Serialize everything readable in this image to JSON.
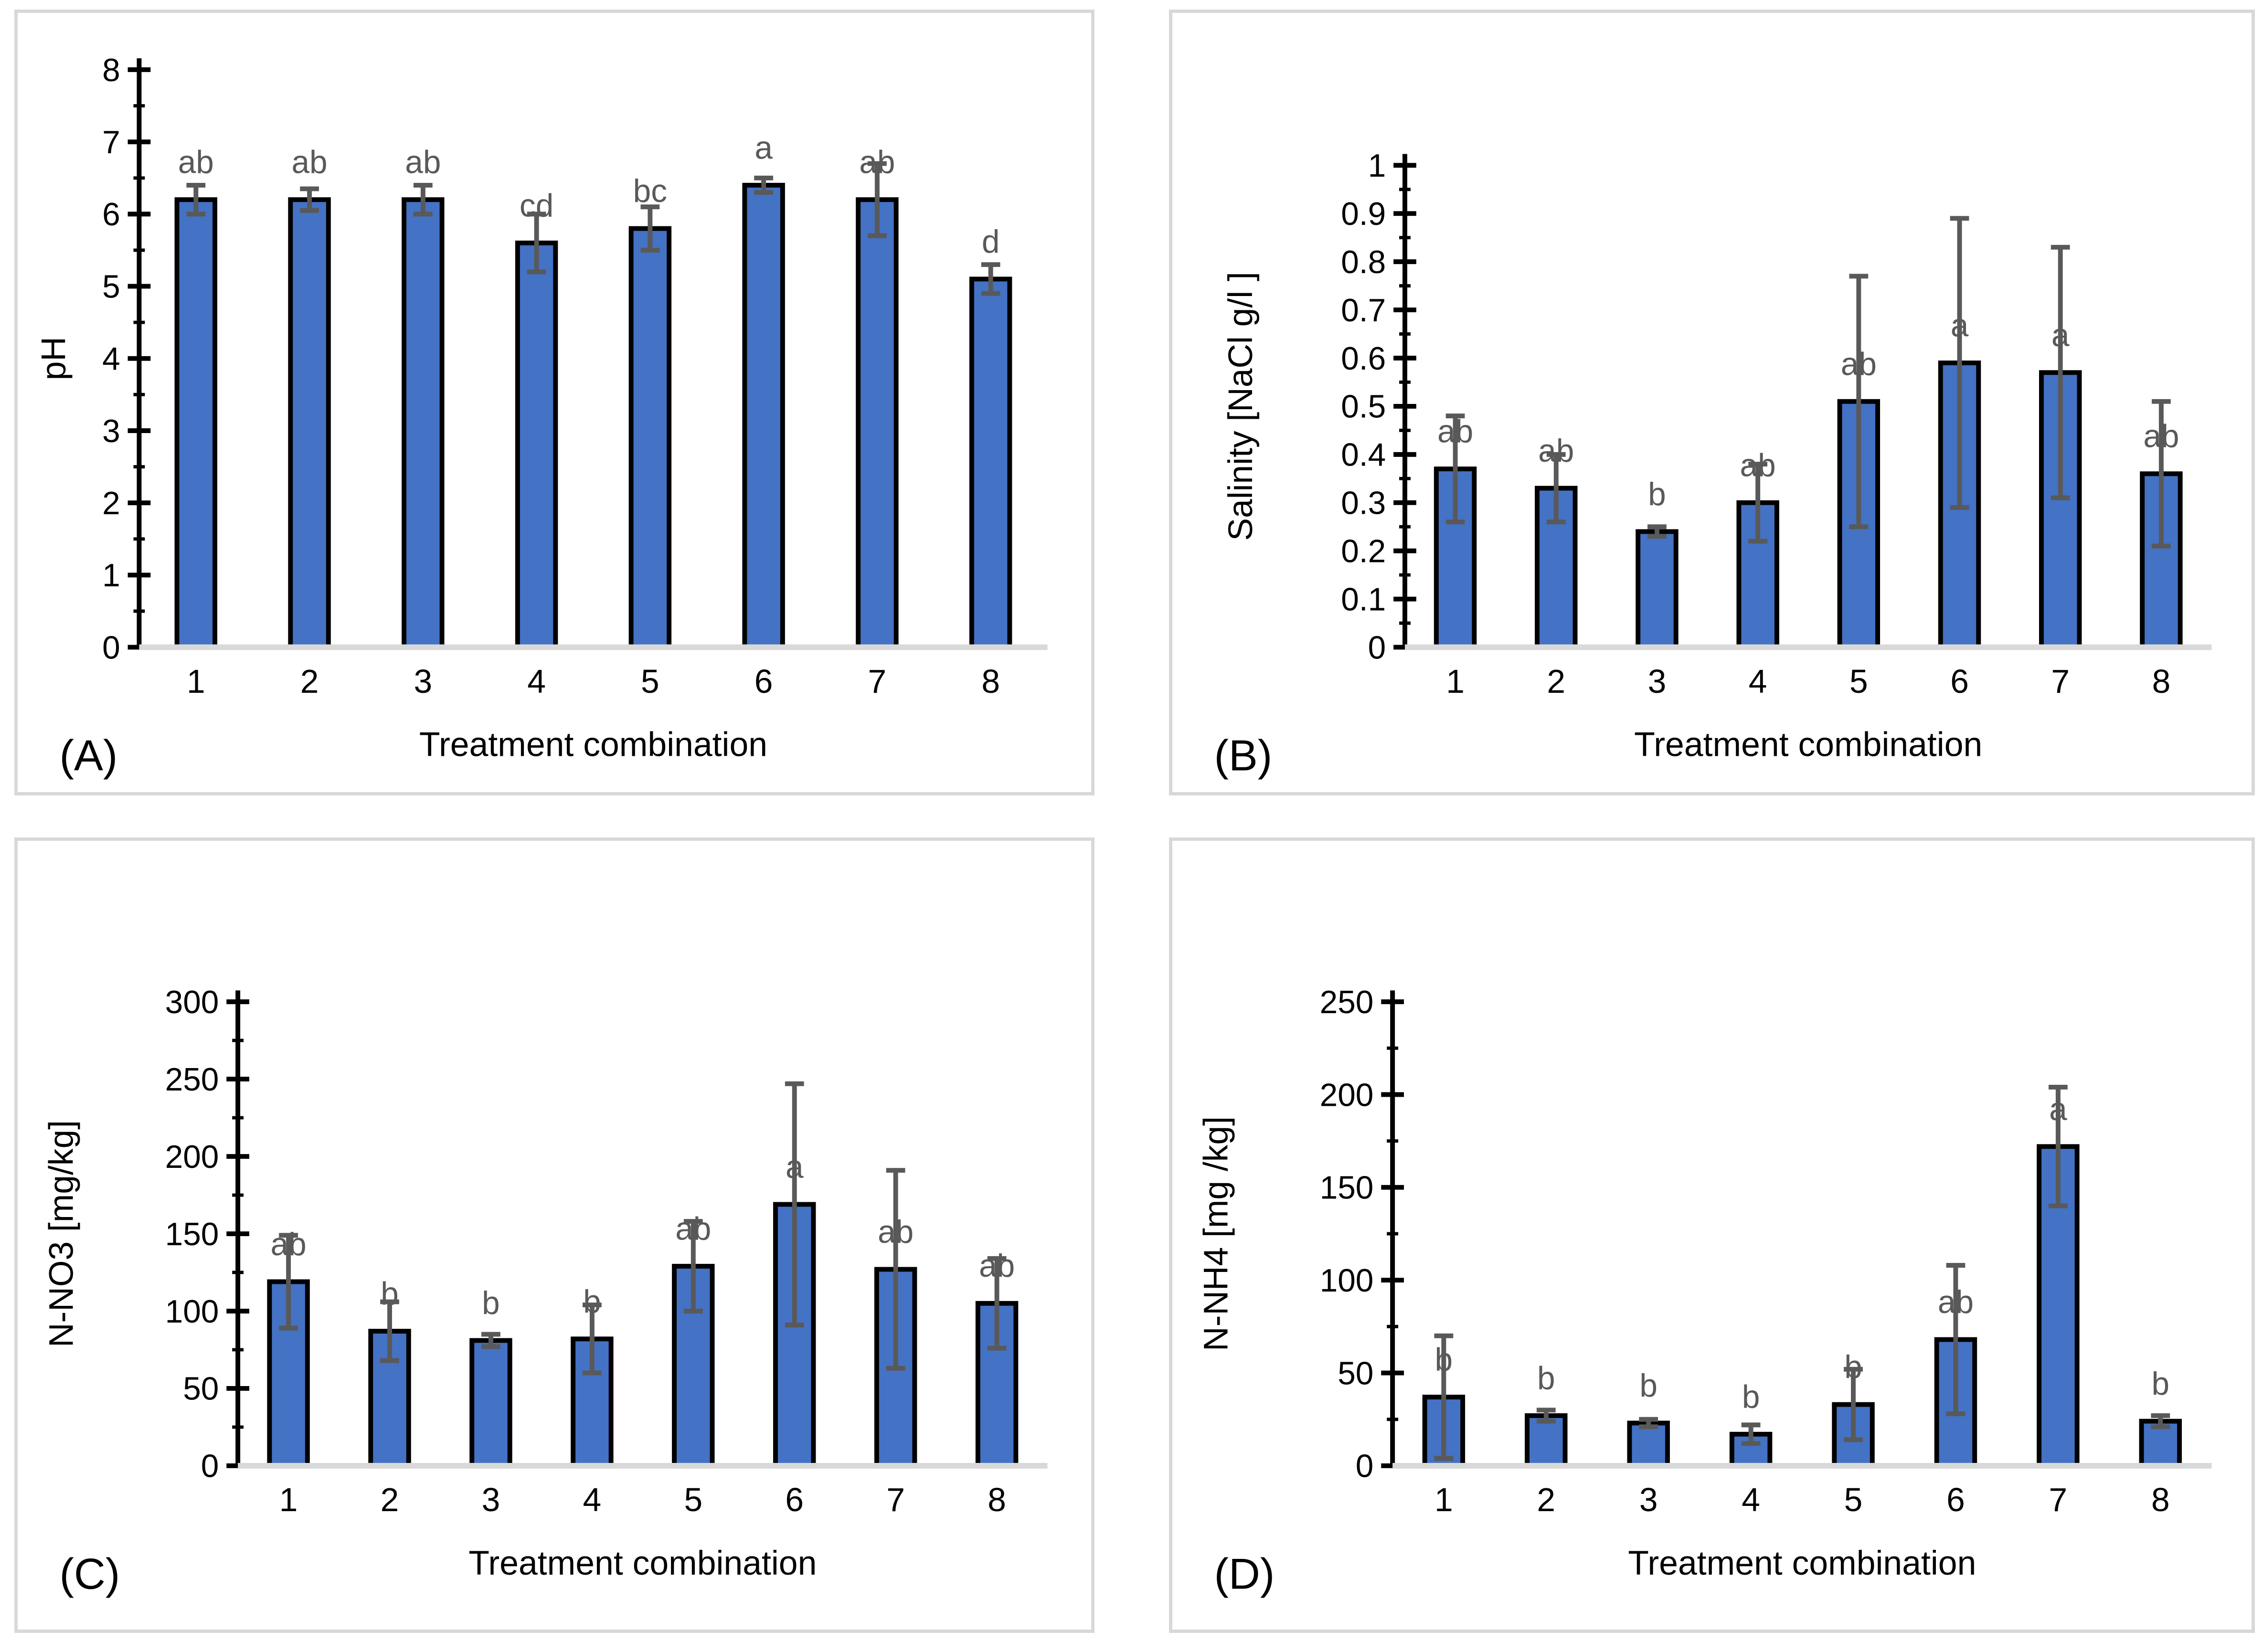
{
  "figure": {
    "description": "Four-panel bar chart figure with significance letters and error bars",
    "x_axis_title": "Treatment combination",
    "colors": {
      "bar_fill": "#4472C4",
      "bar_stroke": "#000000",
      "error_bar": "#595959",
      "sig_letter": "#595959",
      "axis": "#000000",
      "baseline": "#D9D9D9",
      "panel_border": "#D8D8D8",
      "background": "#FFFFFF"
    }
  },
  "chart_data": [
    {
      "type": "bar",
      "panel_label": "(A)",
      "title": "",
      "xlabel": "Treatment combination",
      "ylabel": "pH",
      "categories": [
        "1",
        "2",
        "3",
        "4",
        "5",
        "6",
        "7",
        "8"
      ],
      "values": [
        6.2,
        6.2,
        6.2,
        5.6,
        5.8,
        6.4,
        6.2,
        5.1
      ],
      "errors": [
        0.2,
        0.15,
        0.2,
        0.4,
        0.3,
        0.1,
        0.5,
        0.2
      ],
      "sig_letters": [
        "ab",
        "ab",
        "ab",
        "cd",
        "bc",
        "a",
        "ab",
        "d"
      ],
      "ylim": [
        0,
        8
      ],
      "ytick_label_step": 1,
      "ytick_minor_step": 0.5,
      "grid": false,
      "legend": false
    },
    {
      "type": "bar",
      "panel_label": "(B)",
      "title": "",
      "xlabel": "Treatment combination",
      "ylabel": "Salinity [NaCl g/l ]",
      "categories": [
        "1",
        "2",
        "3",
        "4",
        "5",
        "6",
        "7",
        "8"
      ],
      "values": [
        0.37,
        0.33,
        0.24,
        0.3,
        0.51,
        0.59,
        0.57,
        0.36
      ],
      "errors": [
        0.11,
        0.07,
        0.01,
        0.08,
        0.26,
        0.3,
        0.26,
        0.15
      ],
      "sig_letters": [
        "ab",
        "ab",
        "b",
        "ab",
        "ab",
        "a",
        "a",
        "ab"
      ],
      "ylim": [
        0,
        1
      ],
      "ytick_label_step": 0.1,
      "ytick_minor_step": 0.05,
      "grid": false,
      "legend": false
    },
    {
      "type": "bar",
      "panel_label": "(C)",
      "title": "",
      "xlabel": "Treatment combination",
      "ylabel": "N-NO3 [mg/kg]",
      "categories": [
        "1",
        "2",
        "3",
        "4",
        "5",
        "6",
        "7",
        "8"
      ],
      "values": [
        119,
        87,
        81,
        82,
        129,
        169,
        127,
        105
      ],
      "errors": [
        30,
        19,
        4,
        22,
        29,
        78,
        64,
        29
      ],
      "sig_letters": [
        "ab",
        "b",
        "b",
        "b",
        "ab",
        "a",
        "ab",
        "ab"
      ],
      "ylim": [
        0,
        300
      ],
      "ytick_label_step": 50,
      "ytick_minor_step": 25,
      "grid": false,
      "legend": false
    },
    {
      "type": "bar",
      "panel_label": "(D)",
      "title": "",
      "xlabel": "Treatment combination",
      "ylabel": "N-NH4 [mg /kg]",
      "categories": [
        "1",
        "2",
        "3",
        "4",
        "5",
        "6",
        "7",
        "8"
      ],
      "values": [
        37,
        27,
        23,
        17,
        33,
        68,
        172,
        24
      ],
      "errors": [
        33,
        3,
        2,
        5,
        19,
        40,
        32,
        3
      ],
      "sig_letters": [
        "b",
        "b",
        "b",
        "b",
        "b",
        "ab",
        "a",
        "b"
      ],
      "ylim": [
        0,
        250
      ],
      "ytick_label_step": 50,
      "ytick_minor_step": 25,
      "grid": false,
      "legend": false
    }
  ]
}
